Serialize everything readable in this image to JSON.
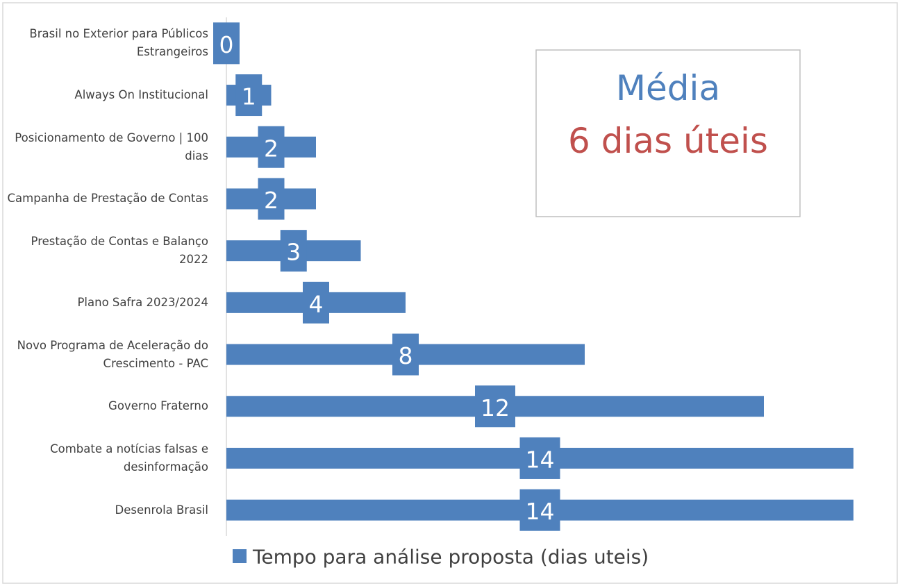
{
  "chart_data": {
    "type": "bar",
    "orientation": "horizontal",
    "categories": [
      "Brasil no Exterior para Públicos Estrangeiros",
      "Always On Institucional",
      "Posicionamento de Governo | 100 dias",
      "Campanha de Prestação de Contas",
      "Prestação de Contas e Balanço 2022",
      "Plano Safra 2023/2024",
      "Novo Programa de Aceleração do Crescimento - PAC",
      "Governo Fraterno",
      "Combate a notícias falsas e desinformação",
      "Desenrola Brasil"
    ],
    "series": [
      {
        "name": "Tempo para análise proposta (dias uteis)",
        "color": "#4f81bd",
        "values": [
          0,
          1,
          2,
          2,
          3,
          4,
          8,
          12,
          14,
          14
        ]
      }
    ],
    "xlim": [
      0,
      14
    ],
    "legend": "bottom",
    "annotations": [
      {
        "text": "Média",
        "color": "#4f81bd"
      },
      {
        "text": "6 dias úteis",
        "color": "#c0504d"
      }
    ]
  }
}
